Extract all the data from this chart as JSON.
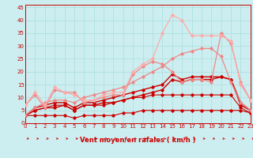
{
  "xlabel": "Vent moyen/en rafales ( km/h )",
  "background_color": "#cceef0",
  "grid_color": "#aadddd",
  "x_ticks": [
    0,
    1,
    2,
    3,
    4,
    5,
    6,
    7,
    8,
    9,
    10,
    11,
    12,
    13,
    14,
    15,
    16,
    17,
    18,
    19,
    20,
    21,
    22,
    23
  ],
  "y_ticks": [
    0,
    5,
    10,
    15,
    20,
    25,
    30,
    35,
    40,
    45
  ],
  "xlim": [
    0,
    23
  ],
  "ylim": [
    0,
    46
  ],
  "lines": [
    {
      "x": [
        0,
        1,
        2,
        3,
        4,
        5,
        6,
        7,
        8,
        9,
        10,
        11,
        12,
        13,
        14,
        15,
        16,
        17,
        18,
        19,
        20,
        21,
        22,
        23
      ],
      "y": [
        3,
        3,
        3,
        3,
        3,
        2,
        3,
        3,
        3,
        3,
        4,
        4,
        5,
        5,
        5,
        5,
        5,
        5,
        5,
        5,
        5,
        5,
        5,
        4
      ],
      "color": "#cc0000",
      "linewidth": 0.8,
      "marker": "D",
      "markersize": 1.8
    },
    {
      "x": [
        0,
        1,
        2,
        3,
        4,
        5,
        6,
        7,
        8,
        9,
        10,
        11,
        12,
        13,
        14,
        15,
        16,
        17,
        18,
        19,
        20,
        21,
        22,
        23
      ],
      "y": [
        3,
        5,
        6,
        7,
        7,
        5,
        7,
        7,
        7,
        8,
        9,
        10,
        10,
        11,
        11,
        11,
        11,
        11,
        11,
        11,
        11,
        11,
        6,
        4
      ],
      "color": "#cc0000",
      "linewidth": 0.8,
      "marker": "D",
      "markersize": 1.8
    },
    {
      "x": [
        0,
        1,
        2,
        3,
        4,
        5,
        6,
        7,
        8,
        9,
        10,
        11,
        12,
        13,
        14,
        15,
        16,
        17,
        18,
        19,
        20,
        21,
        22,
        23
      ],
      "y": [
        3,
        5,
        6,
        6,
        7,
        5,
        7,
        7,
        8,
        8,
        9,
        10,
        11,
        12,
        13,
        17,
        16,
        17,
        17,
        17,
        18,
        17,
        7,
        5
      ],
      "color": "#cc0000",
      "linewidth": 1.0,
      "marker": "D",
      "markersize": 1.8
    },
    {
      "x": [
        0,
        1,
        2,
        3,
        4,
        5,
        6,
        7,
        8,
        9,
        10,
        11,
        12,
        13,
        14,
        15,
        16,
        17,
        18,
        19,
        20,
        21,
        22,
        23
      ],
      "y": [
        3,
        6,
        7,
        8,
        8,
        6,
        8,
        8,
        9,
        10,
        11,
        12,
        13,
        14,
        15,
        19,
        17,
        18,
        18,
        18,
        18,
        17,
        8,
        5
      ],
      "color": "#cc0000",
      "linewidth": 1.0,
      "marker": "D",
      "markersize": 1.8
    },
    {
      "x": [
        0,
        1,
        2,
        3,
        4,
        5,
        6,
        7,
        8,
        9,
        10,
        11,
        12,
        13,
        14,
        15,
        16,
        17,
        18,
        19,
        20,
        21,
        22,
        23
      ],
      "y": [
        7,
        11,
        6,
        13,
        12,
        12,
        8,
        9,
        10,
        11,
        11,
        19,
        22,
        24,
        23,
        20,
        16,
        17,
        17,
        16,
        35,
        31,
        16,
        9
      ],
      "color": "#ee8888",
      "linewidth": 0.9,
      "marker": "D",
      "markersize": 1.8
    },
    {
      "x": [
        0,
        1,
        2,
        3,
        4,
        5,
        6,
        7,
        8,
        9,
        10,
        11,
        12,
        13,
        14,
        15,
        16,
        17,
        18,
        19,
        20,
        21,
        22,
        23
      ],
      "y": [
        3,
        6,
        8,
        9,
        9,
        8,
        10,
        11,
        12,
        13,
        14,
        16,
        18,
        20,
        22,
        25,
        27,
        28,
        29,
        29,
        26,
        16,
        8,
        5
      ],
      "color": "#ee8888",
      "linewidth": 0.9,
      "marker": "D",
      "markersize": 1.8
    },
    {
      "x": [
        0,
        1,
        2,
        3,
        4,
        5,
        6,
        7,
        8,
        9,
        10,
        11,
        12,
        13,
        14,
        15,
        16,
        17,
        18,
        19,
        20,
        21,
        22,
        23
      ],
      "y": [
        7,
        12,
        7,
        14,
        12,
        11,
        9,
        9,
        11,
        12,
        12,
        20,
        23,
        25,
        35,
        42,
        40,
        34,
        34,
        34,
        34,
        32,
        15,
        9
      ],
      "color": "#ffaaaa",
      "linewidth": 0.9,
      "marker": "D",
      "markersize": 1.8
    }
  ],
  "axis_fontsize": 6.0,
  "tick_fontsize": 5.0
}
